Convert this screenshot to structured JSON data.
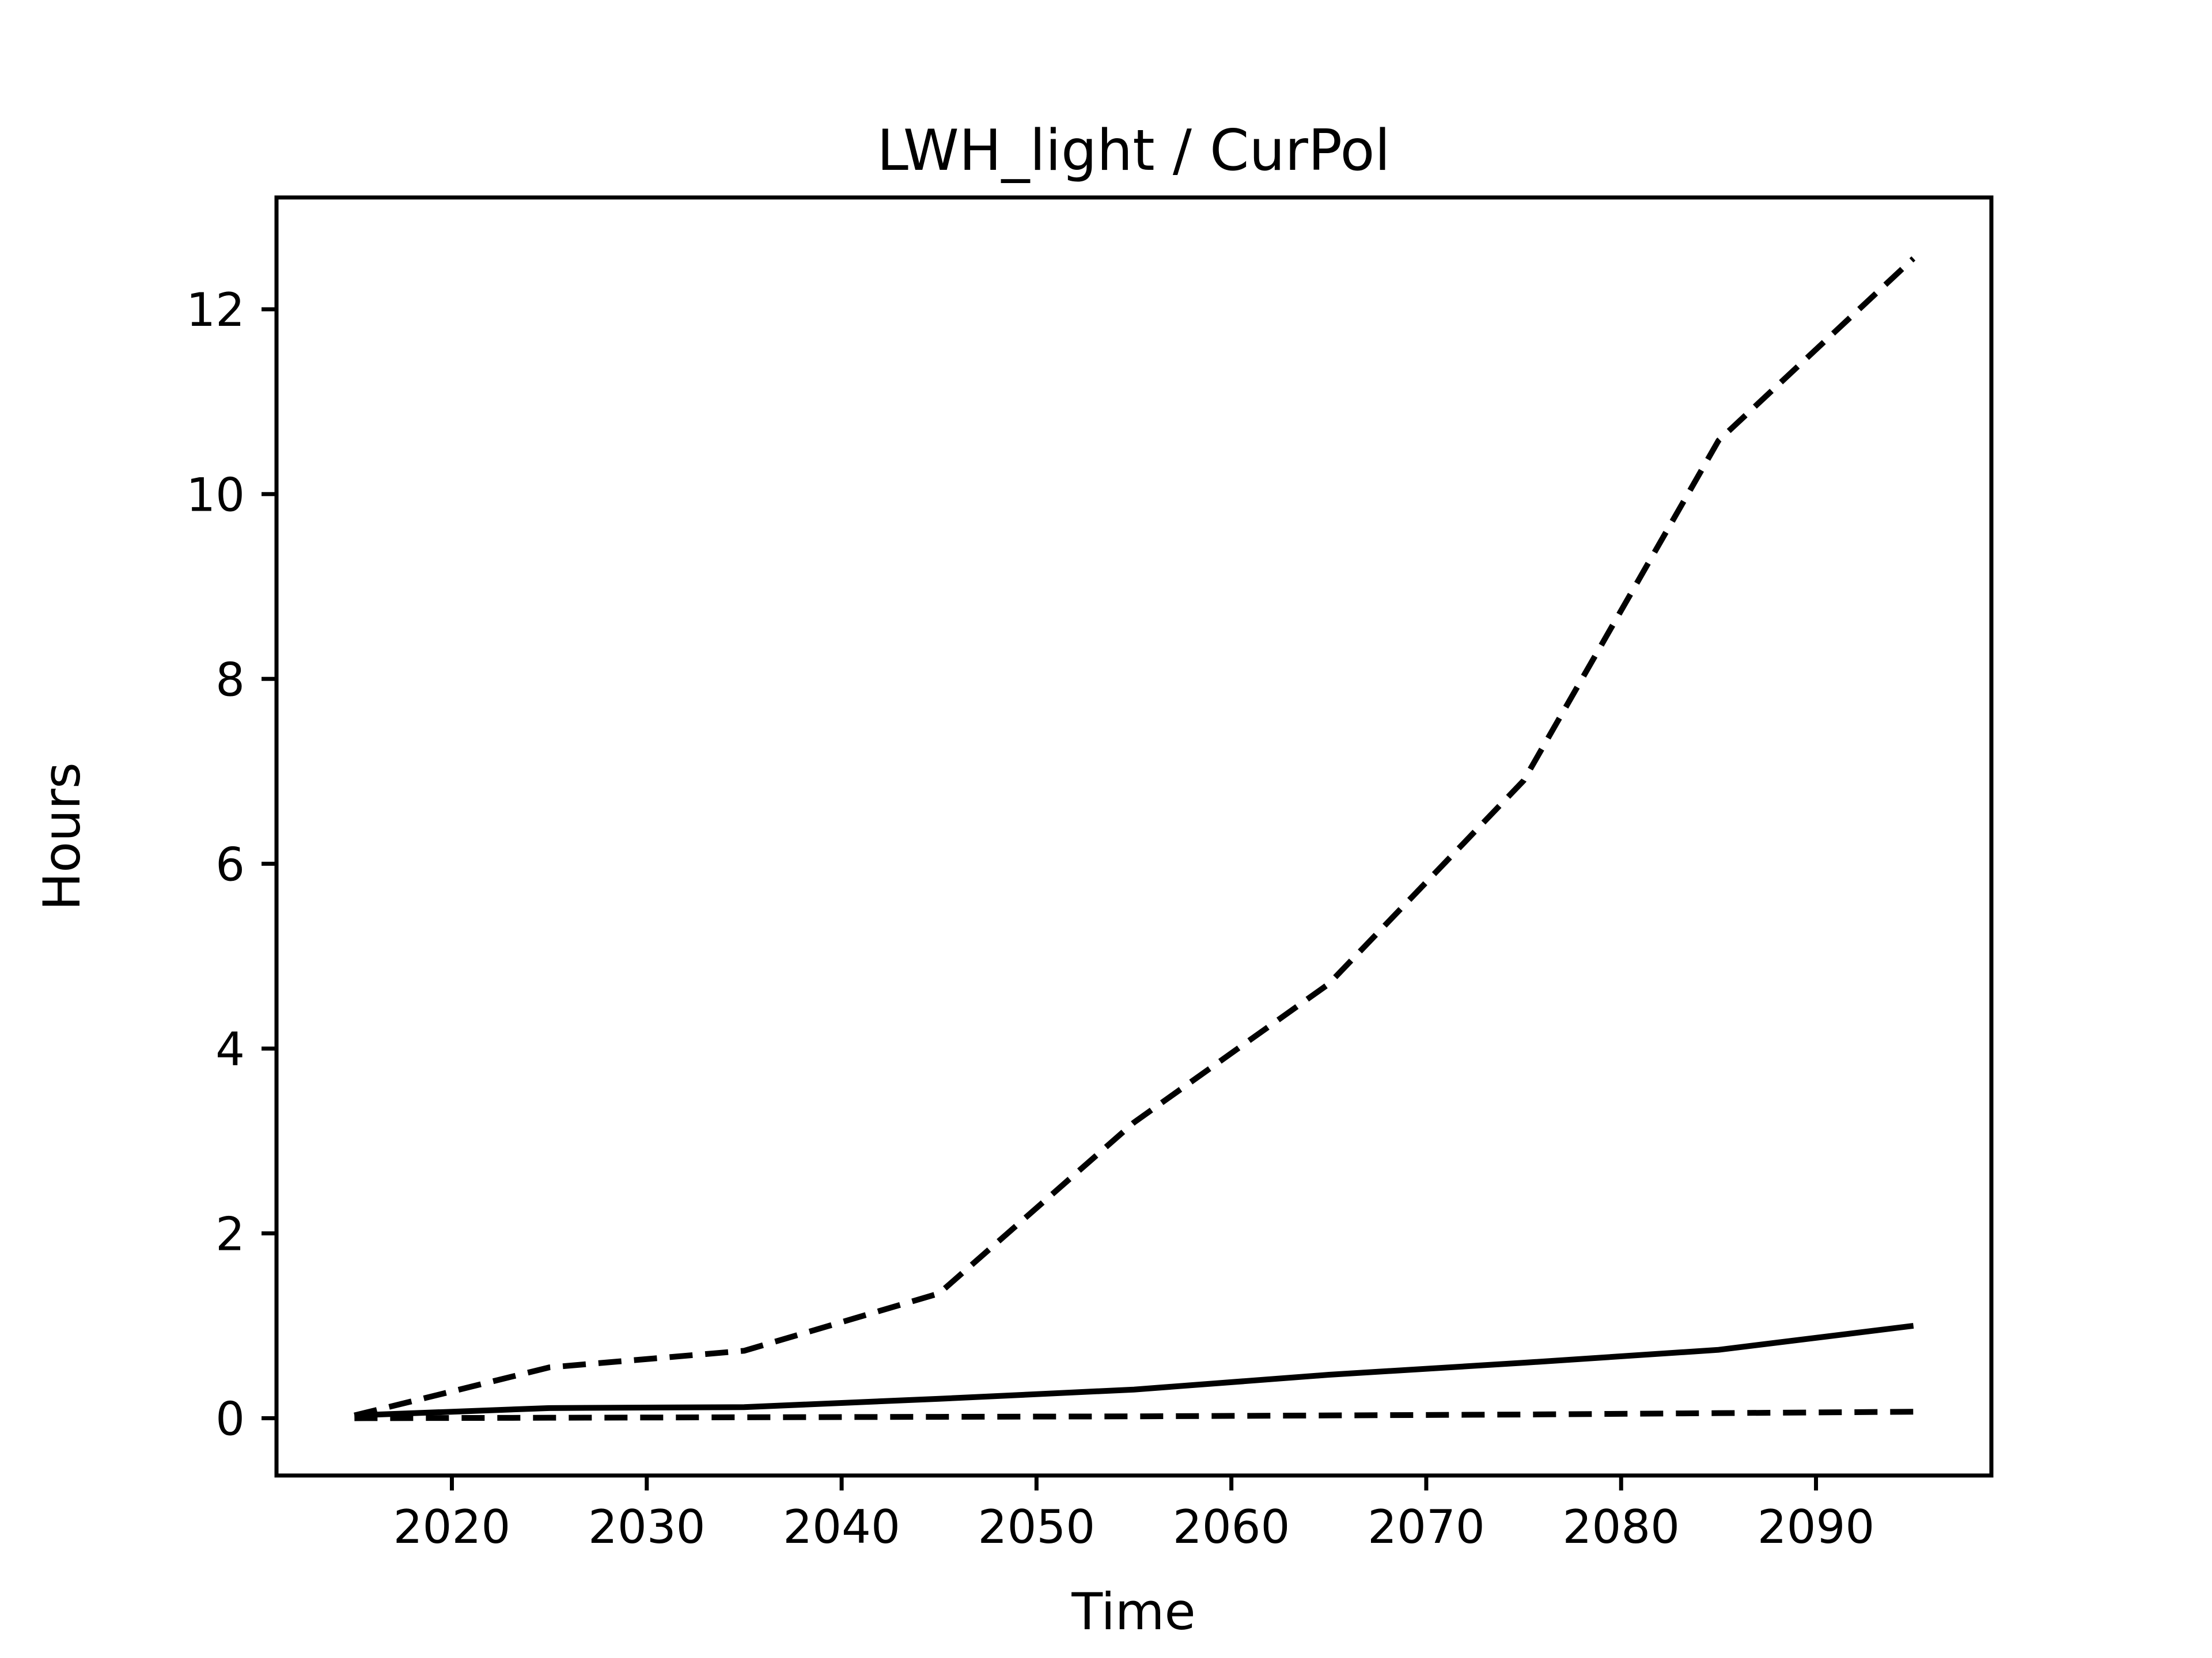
{
  "figure": {
    "background": "#ffffff",
    "foreground": "#000000"
  },
  "chart_data": {
    "type": "line",
    "title": "LWH_light / CurPol",
    "xlabel": "Time",
    "ylabel": "Hours",
    "xlim": [
      2011,
      2099
    ],
    "ylim": [
      -0.62,
      13.21
    ],
    "x_ticks": [
      2020,
      2030,
      2040,
      2050,
      2060,
      2070,
      2080,
      2090
    ],
    "y_ticks": [
      0,
      2,
      4,
      6,
      8,
      10,
      12
    ],
    "grid": false,
    "legend": "none",
    "line_color": "#000000",
    "x": [
      2015,
      2025,
      2035,
      2045,
      2055,
      2065,
      2075,
      2085,
      2095
    ],
    "series": [
      {
        "line_style": "dashed",
        "line_width": 10,
        "values": [
          0.03,
          0.55,
          0.73,
          1.35,
          3.2,
          4.7,
          6.9,
          10.58,
          12.55
        ]
      },
      {
        "line_style": "solid",
        "line_width": 10,
        "values": [
          0.03,
          0.11,
          0.12,
          0.21,
          0.31,
          0.47,
          0.6,
          0.74,
          1.0
        ]
      },
      {
        "line_style": "dashed",
        "line_width": 10,
        "values": [
          0.0,
          0.005,
          0.01,
          0.015,
          0.02,
          0.03,
          0.04,
          0.055,
          0.07
        ]
      }
    ]
  }
}
